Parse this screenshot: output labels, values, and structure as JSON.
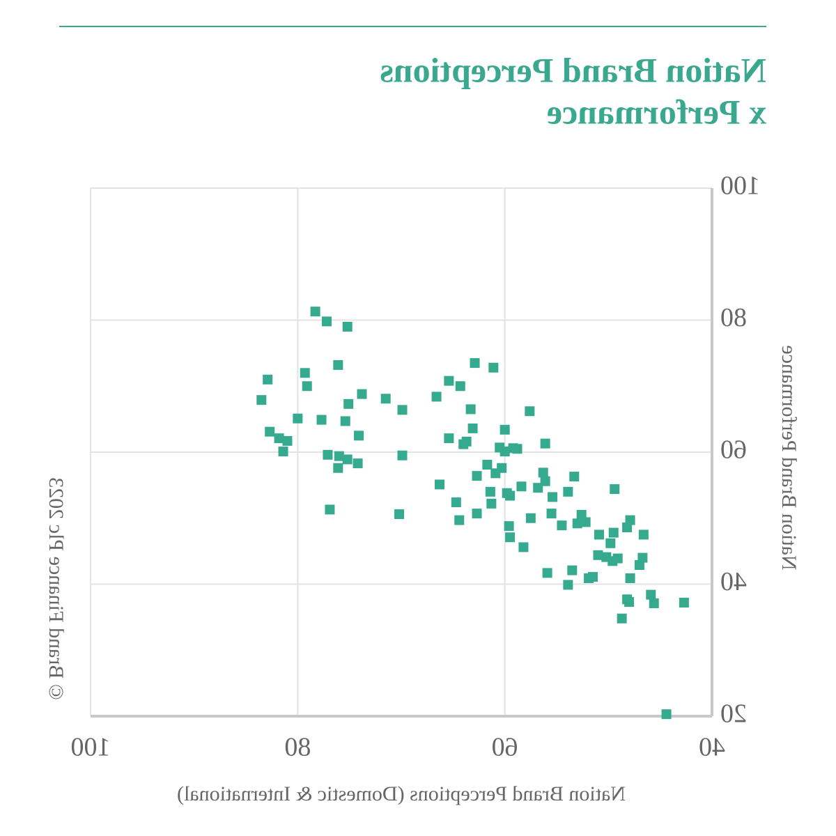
{
  "chart_data": {
    "type": "scatter",
    "title_lines": [
      "Nation Brand Perceptions",
      "x Performance"
    ],
    "x_label": "Nation Brand Perceptions (Domestic & International)",
    "y_label": "Nation Brand Performance",
    "copyright": "© Brand Finance Plc 2023",
    "color": "#36aa8e",
    "grid": true,
    "xlim": [
      40,
      100
    ],
    "xticks": [
      40,
      60,
      80,
      100
    ],
    "ylim": [
      20,
      100
    ],
    "yticks": [
      20,
      40,
      60,
      80,
      100
    ],
    "x": [
      78.3,
      77.2,
      75.2,
      76.1,
      79.3,
      79.1,
      82.9,
      83.5,
      73.8,
      75.1,
      71.5,
      69.9,
      80.0,
      77.7,
      75.4,
      82.7,
      81.8,
      81.0,
      74.1,
      81.4,
      77.1,
      76.0,
      75.2,
      74.2,
      76.1,
      69.9,
      76.9,
      70.2,
      62.9,
      61.1,
      65.4,
      64.3,
      66.6,
      63.3,
      57.6,
      63.1,
      65.4,
      63.7,
      64.0,
      60.0,
      60.5,
      59.2,
      58.8,
      56.1,
      60.0,
      61.7,
      60.3,
      60.9,
      62.7,
      66.3,
      58.4,
      56.3,
      56.1,
      56.8,
      53.3,
      59.8,
      61.4,
      59.5,
      55.4,
      53.9,
      64.7,
      61.3,
      49.4,
      62.7,
      64.4,
      57.5,
      55.5,
      52.6,
      53.0,
      52.2,
      59.6,
      54.5,
      47.9,
      48.2,
      50.9,
      49.5,
      46.6,
      59.5,
      58.2,
      49.8,
      51.0,
      50.2,
      49.6,
      49.1,
      46.7,
      47.0,
      55.9,
      53.5,
      51.5,
      51.9,
      53.9,
      47.9,
      48.2,
      45.9,
      48.0,
      45.6,
      42.7,
      48.7,
      44.4
    ],
    "y": [
      81.3,
      79.8,
      79.0,
      73.2,
      72.0,
      70.0,
      71.0,
      67.9,
      68.8,
      67.3,
      68.1,
      66.4,
      65.1,
      64.9,
      64.7,
      63.1,
      62.1,
      61.7,
      62.5,
      60.1,
      59.6,
      59.4,
      58.9,
      58.3,
      57.6,
      59.5,
      51.3,
      50.6,
      73.5,
      72.8,
      70.8,
      70.0,
      68.4,
      66.5,
      66.2,
      63.6,
      62.1,
      61.6,
      61.2,
      63.4,
      60.7,
      60.6,
      60.5,
      61.3,
      60.1,
      58.1,
      57.6,
      56.8,
      56.4,
      55.1,
      54.8,
      56.9,
      55.6,
      54.6,
      56.3,
      53.8,
      54.0,
      53.4,
      53.2,
      54.0,
      52.4,
      52.2,
      54.4,
      50.7,
      49.7,
      50.0,
      50.7,
      50.5,
      49.2,
      49.4,
      48.8,
      48.9,
      49.7,
      48.6,
      47.5,
      47.8,
      47.5,
      47.1,
      45.6,
      46.2,
      44.4,
      44.1,
      43.5,
      43.9,
      44.0,
      42.9,
      41.7,
      42.1,
      41.1,
      40.9,
      39.9,
      40.9,
      37.7,
      38.4,
      37.3,
      37.1,
      37.2,
      34.8,
      20.3
    ]
  }
}
